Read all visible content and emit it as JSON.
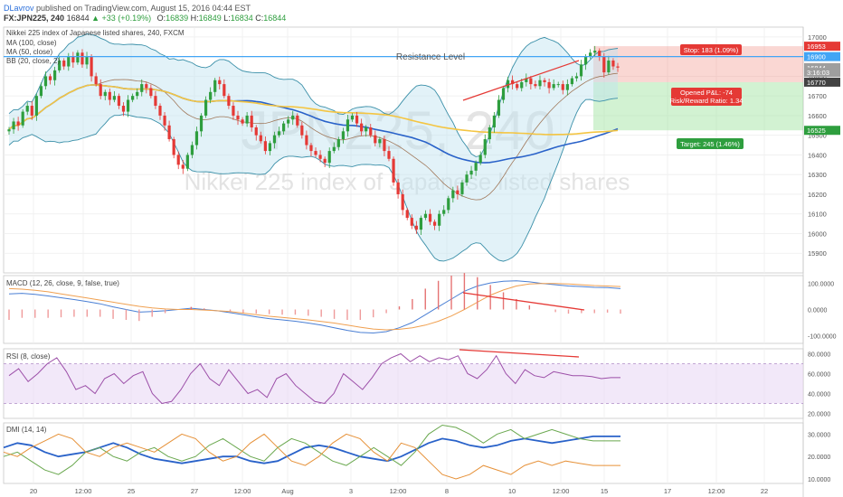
{
  "header": {
    "author": "DLavrov",
    "published_text": "published on TradingView.com, August 15, 2016 04:44 EST",
    "symbol": "FX:JPN225, 240",
    "last_price": "16844",
    "change": "+33 (+0.19%)",
    "ohlc": {
      "o_label": "O:",
      "o": "16839",
      "h_label": "H:",
      "h": "16849",
      "l_label": "L:",
      "l": "16834",
      "c_label": "C:",
      "c": "16844"
    }
  },
  "main_pane": {
    "title": "Nikkei 225 index of Japanese listed shares, 240, FXCM",
    "legend": [
      "MA (100, close)",
      "MA (50, close)",
      "BB (20, close, 2)"
    ],
    "watermark_symbol": "JPN225, 240",
    "watermark_name": "Nikkei 225 index of Japanese listed shares",
    "annotation": "Resistance Level",
    "position_tool": {
      "stop_label": "Stop: 183 (1.09%)",
      "target_label": "Target: 245 (1.46%)",
      "pl_label": "Opened P&L: -74",
      "rr_label": "Risk/Reward Ratio: 1.34"
    },
    "price_badges": [
      {
        "text": "16953",
        "value": 16953,
        "color": "#e53935"
      },
      {
        "text": "16900",
        "value": 16900,
        "color": "#42a5f5"
      },
      {
        "text": "16844",
        "value": 16844,
        "color": "#9e9e9e"
      },
      {
        "text": "3:16:03",
        "value": 16820,
        "color": "#9e9e9e"
      },
      {
        "text": "16770",
        "value": 16770,
        "color": "#424242"
      },
      {
        "text": "16525",
        "value": 16525,
        "color": "#2e9e3e"
      }
    ]
  },
  "macd_pane": {
    "label": "MACD (12, 26, close, 9, false, true)",
    "ticks": [
      "100.0000",
      "0.0000",
      "-100.0000"
    ]
  },
  "rsi_pane": {
    "label": "RSI (8, close)",
    "ticks": [
      "80.0000",
      "60.0000",
      "40.0000",
      "20.0000"
    ]
  },
  "dmi_pane": {
    "label": "DMI (14, 14)",
    "ticks": [
      "30.0000",
      "20.0000",
      "10.0000"
    ]
  },
  "x_axis": {
    "ticks": [
      "20",
      "12:00",
      "25",
      "27",
      "12:00",
      "Aug",
      "3",
      "12:00",
      "8",
      "10",
      "12:00",
      "15",
      "17",
      "12:00",
      "22"
    ]
  },
  "colors": {
    "ma100": "#f4c542",
    "ma50": "#2962c9",
    "bb": "#3a8fa8",
    "bull": "#2e9e3e",
    "bear": "#e53935",
    "resistance": "#42a5f5",
    "trendline": "#e53935",
    "macd": "#4a7fd4",
    "signal": "#f0a050",
    "rsi": "#9c4fa8",
    "dmi_adx": "#2962c9",
    "dmi_plus": "#6aa84f",
    "dmi_minus": "#e69138"
  },
  "chart_data": [
    {
      "type": "candlestick",
      "title": "Nikkei 225 index of Japanese listed shares, 240, FXCM",
      "ylim": [
        15800,
        17050
      ],
      "y_ticks": [
        17000,
        16900,
        16800,
        16700,
        16600,
        16500,
        16400,
        16300,
        16200,
        16100,
        16000,
        15900
      ],
      "series": [
        {
          "name": "Nikkei 225 index of Japanese listed shares",
          "values": [
            16530,
            16570,
            16550,
            16620,
            16650,
            16600,
            16700,
            16750,
            16800,
            16780,
            16830,
            16880,
            16850,
            16900,
            16870,
            16920,
            16860,
            16900,
            16800,
            16760,
            16700,
            16720,
            16680,
            16700,
            16650,
            16620,
            16680,
            16700,
            16720,
            16760,
            16740,
            16700,
            16650,
            16600,
            16550,
            16480,
            16400,
            16350,
            16330,
            16400,
            16450,
            16520,
            16600,
            16680,
            16720,
            16780,
            16760,
            16700,
            16650,
            16600,
            16580,
            16560,
            16600,
            16540,
            16500,
            16470,
            16420,
            16460,
            16500,
            16520,
            16560,
            16580,
            16600,
            16550,
            16500,
            16450,
            16420,
            16400,
            16380,
            16360,
            16420,
            16440,
            16480,
            16520,
            16580,
            16600,
            16560,
            16520,
            16540,
            16500,
            16460,
            16480,
            16420,
            16380,
            16260,
            16200,
            16120,
            16080,
            16040,
            16020,
            16080,
            16100,
            16060,
            16040,
            16100,
            16120,
            16180,
            16220,
            16200,
            16260,
            16300,
            16320,
            16360,
            16400,
            16480,
            16540,
            16600,
            16680,
            16740,
            16780,
            16760,
            16740,
            16770,
            16790,
            16760,
            16750,
            16780,
            16770,
            16740,
            16760,
            16760,
            16730,
            16760,
            16790,
            16800,
            16860,
            16900,
            16920,
            16930,
            16900,
            16820,
            16880,
            16850,
            16844
          ]
        }
      ]
    },
    {
      "type": "line",
      "title": "MACD (12, 26, close, 9, false, true)",
      "ylim": [
        -130,
        130
      ],
      "series": [
        {
          "name": "MACD",
          "values": [
            60,
            62,
            58,
            52,
            45,
            38,
            30,
            22,
            10,
            0,
            -10,
            -8,
            -5,
            0,
            5,
            0,
            -5,
            -12,
            -20,
            -28,
            -35,
            -40,
            -45,
            -52,
            -60,
            -70,
            -80,
            -88,
            -90,
            -85,
            -70,
            -50,
            -20,
            10,
            40,
            70,
            90,
            102,
            108,
            110,
            106,
            100,
            95,
            90,
            88,
            85,
            84,
            80
          ]
        },
        {
          "name": "Signal",
          "values": [
            80,
            78,
            74,
            68,
            60,
            52,
            44,
            36,
            28,
            20,
            12,
            6,
            2,
            0,
            0,
            -2,
            -5,
            -8,
            -14,
            -20,
            -26,
            -30,
            -35,
            -40,
            -46,
            -52,
            -60,
            -68,
            -75,
            -78,
            -76,
            -70,
            -60,
            -45,
            -25,
            0,
            28,
            55,
            75,
            90,
            98,
            100,
            100,
            98,
            95,
            92,
            90,
            88
          ]
        }
      ]
    },
    {
      "type": "line",
      "title": "RSI (8, close)",
      "ylim": [
        15,
        85
      ],
      "series": [
        {
          "name": "RSI",
          "values": [
            58,
            65,
            52,
            60,
            70,
            76,
            62,
            44,
            48,
            40,
            55,
            60,
            50,
            58,
            62,
            40,
            30,
            32,
            44,
            60,
            70,
            55,
            48,
            64,
            52,
            40,
            44,
            36,
            55,
            60,
            48,
            40,
            32,
            30,
            40,
            60,
            52,
            44,
            56,
            70,
            76,
            80,
            72,
            78,
            72,
            76,
            74,
            78,
            60,
            55,
            64,
            78,
            60,
            50,
            64,
            58,
            56,
            62,
            60,
            58,
            58,
            57,
            55,
            56,
            56
          ]
        }
      ]
    },
    {
      "type": "line",
      "title": "DMI (14, 14)",
      "ylim": [
        8,
        35
      ],
      "series": [
        {
          "name": "ADX",
          "values": [
            24,
            26,
            25,
            22,
            20,
            21,
            22,
            24,
            26,
            24,
            21,
            19,
            18,
            17,
            18,
            19,
            20,
            20,
            18,
            17,
            18,
            21,
            24,
            25,
            24,
            22,
            20,
            19,
            18,
            20,
            23,
            26,
            28,
            27,
            25,
            24,
            25,
            27,
            28,
            27,
            26,
            27,
            28,
            29,
            29,
            29
          ]
        },
        {
          "name": "+DI",
          "values": [
            20,
            22,
            18,
            14,
            12,
            16,
            22,
            24,
            20,
            18,
            22,
            24,
            20,
            18,
            20,
            25,
            28,
            24,
            20,
            18,
            24,
            28,
            26,
            22,
            18,
            16,
            20,
            24,
            20,
            16,
            22,
            30,
            34,
            33,
            30,
            26,
            30,
            32,
            28,
            30,
            32,
            30,
            28,
            27,
            27,
            27
          ]
        },
        {
          "name": "-DI",
          "values": [
            22,
            20,
            24,
            27,
            30,
            28,
            22,
            20,
            24,
            26,
            24,
            22,
            26,
            30,
            28,
            22,
            18,
            20,
            26,
            30,
            24,
            18,
            16,
            20,
            26,
            30,
            28,
            22,
            18,
            26,
            24,
            18,
            12,
            10,
            12,
            16,
            14,
            12,
            16,
            18,
            16,
            18,
            17,
            16,
            16,
            16
          ]
        }
      ]
    }
  ]
}
